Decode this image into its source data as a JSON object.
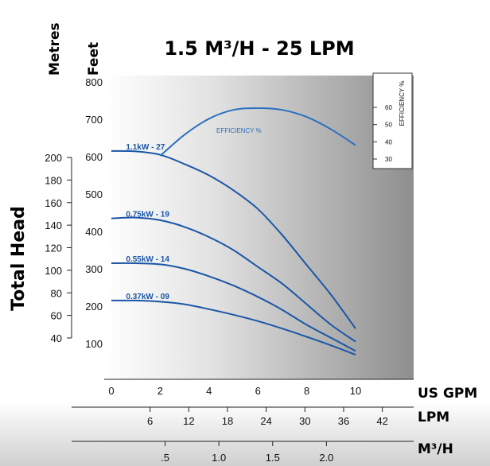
{
  "chart_data": {
    "type": "line",
    "title": "1.5 M³/H - 25 LPM",
    "left_axis_labels": {
      "metres": "Metres",
      "feet": "Feet"
    },
    "ylabel": "Total Head",
    "feet_ticks": [
      "100",
      "200",
      "300",
      "400",
      "500",
      "600",
      "700",
      "800"
    ],
    "metre_ticks": [
      "40",
      "60",
      "80",
      "100",
      "120",
      "140",
      "160",
      "180",
      "200"
    ],
    "x_axes": [
      {
        "label": "US GPM",
        "ticks": [
          "0",
          "2",
          "4",
          "6",
          "8",
          "10"
        ]
      },
      {
        "label": "LPM",
        "ticks": [
          "6",
          "12",
          "18",
          "24",
          "30",
          "36",
          "42"
        ]
      },
      {
        "label": "M³/H",
        "ticks": [
          ".5",
          "1.0",
          "1.5",
          "2.0"
        ]
      }
    ],
    "xlim_gpm": [
      -0.8,
      11
    ],
    "ylim_feet": [
      0,
      900
    ],
    "grid": false,
    "series": [
      {
        "name": "1.1kW - 27",
        "x": [
          0,
          1,
          2,
          3,
          4,
          5,
          6,
          7,
          8,
          9,
          10
        ],
        "y": [
          615,
          614,
          605,
          580,
          550,
          510,
          460,
          390,
          310,
          230,
          140
        ]
      },
      {
        "name": "0.75kW - 19",
        "x": [
          0,
          1,
          2,
          3,
          4,
          5,
          6,
          7,
          8,
          9,
          10
        ],
        "y": [
          435,
          437,
          430,
          412,
          385,
          350,
          305,
          260,
          205,
          150,
          105
        ]
      },
      {
        "name": "0.55kW - 14",
        "x": [
          0,
          1,
          2,
          3,
          4,
          5,
          6,
          7,
          8,
          9,
          10
        ],
        "y": [
          315,
          315,
          312,
          300,
          280,
          255,
          225,
          190,
          150,
          115,
          80
        ]
      },
      {
        "name": "0.37kW - 09",
        "x": [
          0,
          1,
          2,
          3,
          4,
          5,
          6,
          7,
          8,
          9,
          10
        ],
        "y": [
          215,
          215,
          212,
          205,
          192,
          177,
          160,
          140,
          118,
          95,
          70
        ]
      }
    ],
    "efficiency": {
      "label": "EFFICIENCY %",
      "axis_title": "EFFICIENCY %",
      "ticks": [
        "30",
        "40",
        "50",
        "60"
      ],
      "x": [
        2,
        3,
        4,
        5,
        6,
        7,
        8,
        9,
        10
      ],
      "y": [
        30,
        42,
        51,
        56,
        57,
        56,
        52,
        45,
        36
      ]
    }
  }
}
